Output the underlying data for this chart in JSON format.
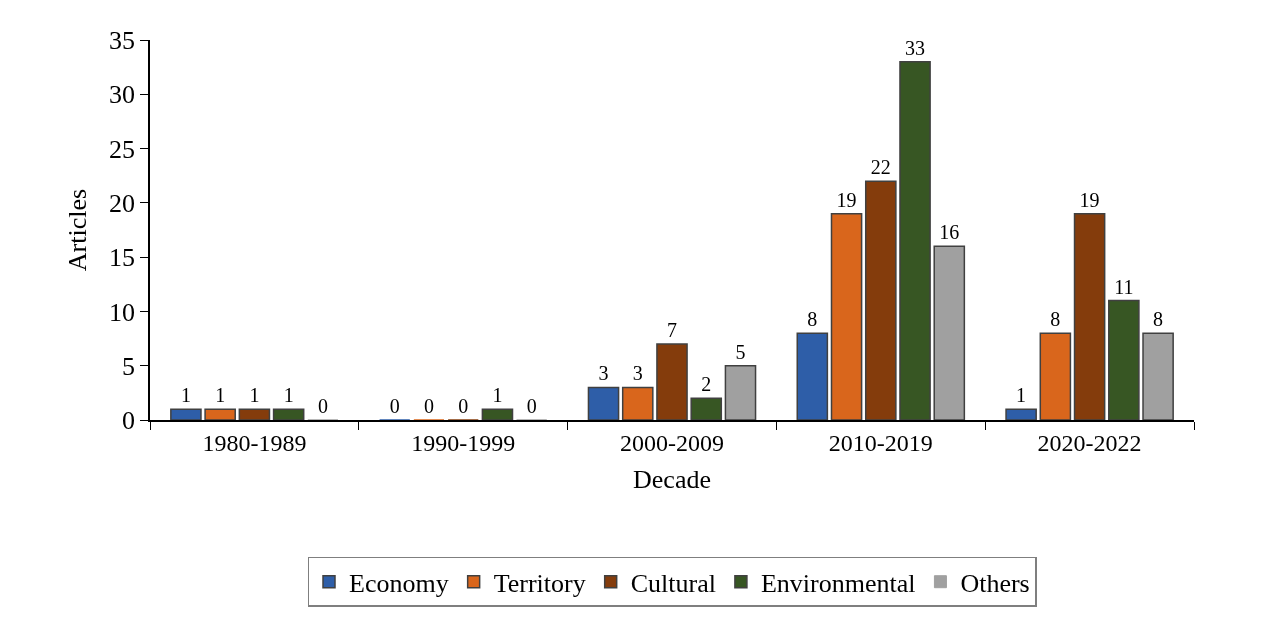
{
  "chart_data": {
    "type": "bar",
    "xlabel": "Decade",
    "ylabel": "Articles",
    "categories": [
      "1980-1989",
      "1990-1999",
      "2000-2009",
      "2010-2019",
      "2020-2022"
    ],
    "series": [
      {
        "name": "Economy",
        "color": "#2e5ea8",
        "values": [
          1,
          0,
          3,
          8,
          1
        ]
      },
      {
        "name": "Territory",
        "color": "#d9661c",
        "values": [
          1,
          0,
          3,
          19,
          8
        ]
      },
      {
        "name": "Cultural",
        "color": "#843c0c",
        "values": [
          1,
          0,
          7,
          22,
          19
        ]
      },
      {
        "name": "Environmental",
        "color": "#375623",
        "values": [
          1,
          1,
          2,
          33,
          11
        ]
      },
      {
        "name": "Others",
        "color": "#a0a0a0",
        "values": [
          0,
          0,
          5,
          16,
          8
        ]
      }
    ],
    "ylim": [
      0,
      35
    ],
    "yticks": [
      0,
      5,
      10,
      15,
      20,
      25,
      30,
      35
    ],
    "data_labels": true,
    "legend": "bottom"
  }
}
